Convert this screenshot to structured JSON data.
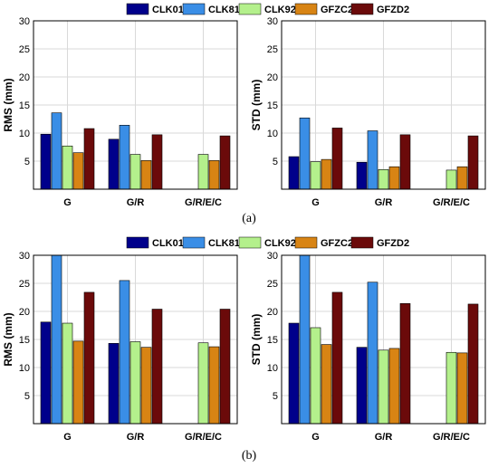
{
  "legend_entries": [
    {
      "name": "CLK01",
      "color": "#00008b"
    },
    {
      "name": "CLK81",
      "color": "#3a8ee6"
    },
    {
      "name": "CLK92",
      "color": "#b4f08c"
    },
    {
      "name": "GFZC2",
      "color": "#d88414"
    },
    {
      "name": "GFZD2",
      "color": "#6b0a0a"
    }
  ],
  "figure_labels": [
    "(a)",
    "(b)"
  ],
  "chart_data": [
    {
      "type": "bar",
      "panel": "(a)",
      "ylabel": "RMS (mm)",
      "categories": [
        "G",
        "G/R",
        "G/R/E/C"
      ],
      "ylim": [
        0,
        30
      ],
      "yticks": [
        5,
        10,
        15,
        20,
        25,
        30
      ],
      "grid": true,
      "series": [
        {
          "name": "CLK01",
          "values": [
            9.8,
            8.9,
            null
          ]
        },
        {
          "name": "CLK81",
          "values": [
            13.6,
            11.4,
            null
          ]
        },
        {
          "name": "CLK92",
          "values": [
            7.7,
            6.2,
            6.2
          ]
        },
        {
          "name": "GFZC2",
          "values": [
            6.5,
            5.1,
            5.1
          ]
        },
        {
          "name": "GFZD2",
          "values": [
            10.8,
            9.7,
            9.5
          ]
        }
      ]
    },
    {
      "type": "bar",
      "panel": "(a)",
      "ylabel": "STD (mm)",
      "categories": [
        "G",
        "G/R",
        "G/R/E/C"
      ],
      "ylim": [
        0,
        30
      ],
      "yticks": [
        5,
        10,
        15,
        20,
        25,
        30
      ],
      "grid": true,
      "series": [
        {
          "name": "CLK01",
          "values": [
            5.8,
            4.8,
            null
          ]
        },
        {
          "name": "CLK81",
          "values": [
            12.7,
            10.4,
            null
          ]
        },
        {
          "name": "CLK92",
          "values": [
            4.9,
            3.5,
            3.4
          ]
        },
        {
          "name": "GFZC2",
          "values": [
            5.3,
            4.0,
            4.0
          ]
        },
        {
          "name": "GFZD2",
          "values": [
            10.9,
            9.7,
            9.5
          ]
        }
      ]
    },
    {
      "type": "bar",
      "panel": "(b)",
      "ylabel": "RMS (mm)",
      "categories": [
        "G",
        "G/R",
        "G/R/E/C"
      ],
      "ylim": [
        0,
        30
      ],
      "yticks": [
        5,
        10,
        15,
        20,
        25,
        30
      ],
      "grid": true,
      "series": [
        {
          "name": "CLK01",
          "values": [
            18.1,
            14.3,
            null
          ]
        },
        {
          "name": "CLK81",
          "values": [
            30,
            25.5,
            null
          ]
        },
        {
          "name": "CLK92",
          "values": [
            17.9,
            14.6,
            14.4
          ]
        },
        {
          "name": "GFZC2",
          "values": [
            14.7,
            13.6,
            13.7
          ]
        },
        {
          "name": "GFZD2",
          "values": [
            23.4,
            20.4,
            20.4
          ]
        }
      ]
    },
    {
      "type": "bar",
      "panel": "(b)",
      "ylabel": "STD (mm)",
      "categories": [
        "G",
        "G/R",
        "G/R/E/C"
      ],
      "ylim": [
        0,
        30
      ],
      "yticks": [
        5,
        10,
        15,
        20,
        25,
        30
      ],
      "grid": true,
      "series": [
        {
          "name": "CLK01",
          "values": [
            17.9,
            13.6,
            null
          ]
        },
        {
          "name": "CLK81",
          "values": [
            30,
            25.2,
            null
          ]
        },
        {
          "name": "CLK92",
          "values": [
            17.1,
            13.1,
            12.7
          ]
        },
        {
          "name": "GFZC2",
          "values": [
            14.1,
            13.4,
            12.6
          ]
        },
        {
          "name": "GFZD2",
          "values": [
            23.4,
            21.4,
            21.3
          ]
        }
      ]
    }
  ]
}
